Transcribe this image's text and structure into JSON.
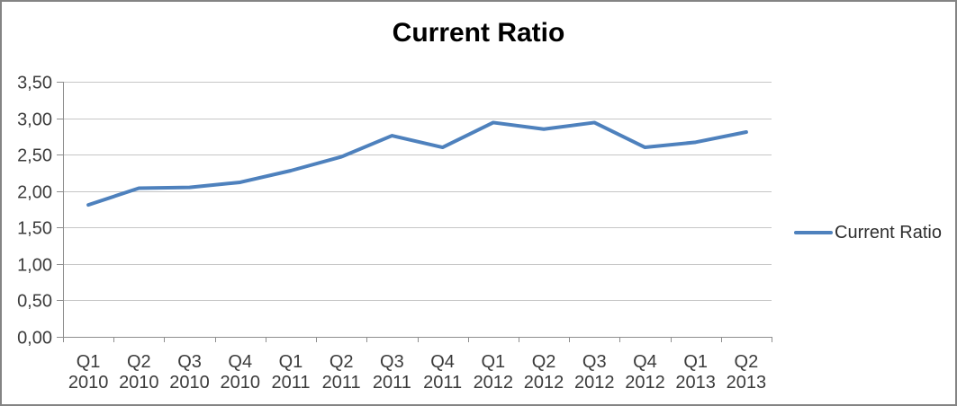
{
  "window": {
    "background": "#FFFFFF",
    "border_color": "#848484"
  },
  "title": "Current Ratio",
  "legend": {
    "label": "Current Ratio",
    "swatch_color": "#4E81BD"
  },
  "chart_data": {
    "type": "line",
    "title": "Current Ratio",
    "categories": [
      "Q1 2010",
      "Q2 2010",
      "Q3 2010",
      "Q4 2010",
      "Q1 2011",
      "Q2 2011",
      "Q3 2011",
      "Q4 2011",
      "Q1 2012",
      "Q2 2012",
      "Q3 2012",
      "Q4 2012",
      "Q1 2013",
      "Q2 2013"
    ],
    "series": [
      {
        "name": "Current Ratio",
        "color": "#4E81BD",
        "values": [
          1.81,
          2.04,
          2.05,
          2.12,
          2.28,
          2.47,
          2.76,
          2.6,
          2.94,
          2.85,
          2.94,
          2.6,
          2.67,
          2.81
        ]
      }
    ],
    "ylim": [
      0,
      3.5
    ],
    "ytick_step": 0.5,
    "ytick_labels": [
      "0,00",
      "0,50",
      "1,00",
      "1,50",
      "2,00",
      "2,50",
      "3,00",
      "3,50"
    ],
    "xlabel": "",
    "ylabel": "",
    "grid": true,
    "legend_position": "right",
    "gridline_color": "#C6C6C6",
    "axis_color": "#8E8E8E",
    "text_color": "#3B3B3B"
  }
}
